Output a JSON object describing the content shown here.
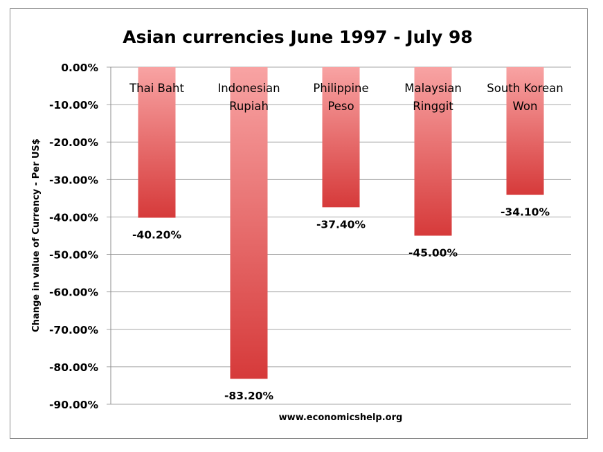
{
  "chart_data": {
    "type": "bar",
    "title": "Asian currencies June 1997 - July 98",
    "ylabel": "Change in value of Currency - Per US$",
    "xlabel": "",
    "source": "www.economicshelp.org",
    "ylim": [
      -90,
      0
    ],
    "yticks": [
      0,
      -10,
      -20,
      -30,
      -40,
      -50,
      -60,
      -70,
      -80,
      -90
    ],
    "ytick_labels": [
      "0.00%",
      "-10.00%",
      "-20.00%",
      "-30.00%",
      "-40.00%",
      "-50.00%",
      "-60.00%",
      "-70.00%",
      "-80.00%",
      "-90.00%"
    ],
    "categories": [
      [
        "Thai Baht"
      ],
      [
        "Indonesian",
        "Rupiah"
      ],
      [
        "Philippine",
        "Peso"
      ],
      [
        "Malaysian",
        "Ringgit"
      ],
      [
        "South Korean",
        "Won"
      ]
    ],
    "values": [
      -40.2,
      -83.2,
      -37.4,
      -45.0,
      -34.1
    ],
    "data_labels": [
      "-40.20%",
      "-83.20%",
      "-37.40%",
      "-45.00%",
      "-34.10%"
    ],
    "grid": true,
    "legend": "none",
    "bar_color_top": "#f8a3a3",
    "bar_color_bottom": "#d63a3a"
  }
}
